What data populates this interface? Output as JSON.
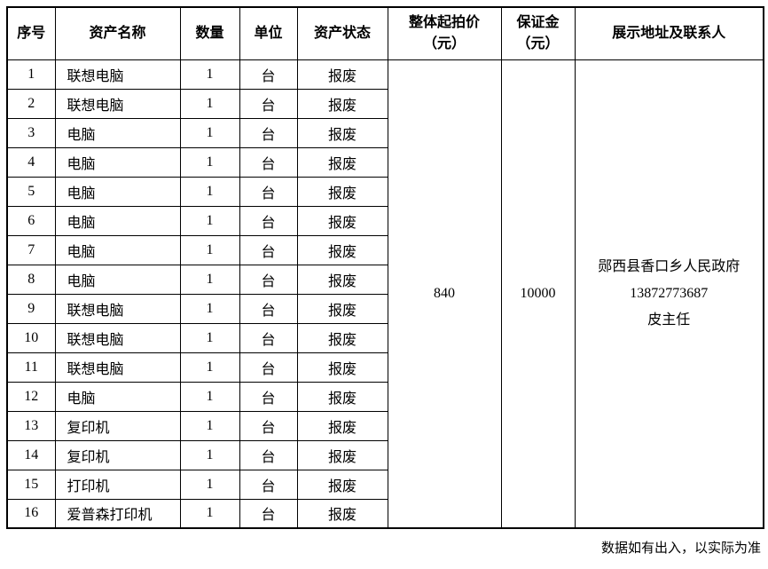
{
  "table": {
    "columns": [
      {
        "label": "序号"
      },
      {
        "label": "资产名称"
      },
      {
        "label": "数量"
      },
      {
        "label": "单位"
      },
      {
        "label": "资产状态"
      },
      {
        "label": "整体起拍价\n（元）"
      },
      {
        "label": "保证金\n（元）"
      },
      {
        "label": "展示地址及联系人"
      }
    ],
    "rows": [
      {
        "no": "1",
        "name": "联想电脑",
        "qty": "1",
        "unit": "台",
        "status": "报废"
      },
      {
        "no": "2",
        "name": "联想电脑",
        "qty": "1",
        "unit": "台",
        "status": "报废"
      },
      {
        "no": "3",
        "name": "电脑",
        "qty": "1",
        "unit": "台",
        "status": "报废"
      },
      {
        "no": "4",
        "name": "电脑",
        "qty": "1",
        "unit": "台",
        "status": "报废"
      },
      {
        "no": "5",
        "name": "电脑",
        "qty": "1",
        "unit": "台",
        "status": "报废"
      },
      {
        "no": "6",
        "name": "电脑",
        "qty": "1",
        "unit": "台",
        "status": "报废"
      },
      {
        "no": "7",
        "name": "电脑",
        "qty": "1",
        "unit": "台",
        "status": "报废"
      },
      {
        "no": "8",
        "name": "电脑",
        "qty": "1",
        "unit": "台",
        "status": "报废"
      },
      {
        "no": "9",
        "name": "联想电脑",
        "qty": "1",
        "unit": "台",
        "status": "报废"
      },
      {
        "no": "10",
        "name": "联想电脑",
        "qty": "1",
        "unit": "台",
        "status": "报废"
      },
      {
        "no": "11",
        "name": "联想电脑",
        "qty": "1",
        "unit": "台",
        "status": "报废"
      },
      {
        "no": "12",
        "name": "电脑",
        "qty": "1",
        "unit": "台",
        "status": "报废"
      },
      {
        "no": "13",
        "name": "复印机",
        "qty": "1",
        "unit": "台",
        "status": "报废"
      },
      {
        "no": "14",
        "name": "复印机",
        "qty": "1",
        "unit": "台",
        "status": "报废"
      },
      {
        "no": "15",
        "name": "打印机",
        "qty": "1",
        "unit": "台",
        "status": "报废"
      },
      {
        "no": "16",
        "name": "爱普森打印机",
        "qty": "1",
        "unit": "台",
        "status": "报废"
      }
    ],
    "merged": {
      "start_price": "840",
      "deposit": "10000",
      "contact": "郧西县香口乡人民政府\n13872773687\n皮主任"
    }
  },
  "footer": {
    "note": "数据如有出入，以实际为准"
  }
}
